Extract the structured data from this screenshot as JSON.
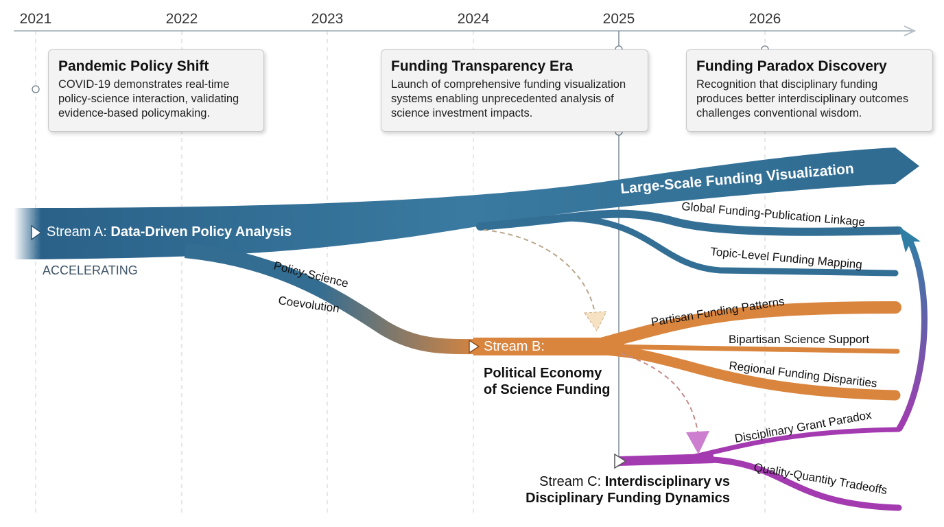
{
  "axis": {
    "years": [
      "2021",
      "2022",
      "2023",
      "2024",
      "2025",
      "2026"
    ]
  },
  "cards": [
    {
      "title": "Pandemic Policy Shift",
      "body": "COVID-19 demonstrates real-time policy-science interaction, validating evidence-based policymaking."
    },
    {
      "title": "Funding Transparency Era",
      "body": "Launch of comprehensive funding visualization systems enabling unprecedented analysis of science investment impacts."
    },
    {
      "title": "Funding Paradox Discovery",
      "body": "Recognition that disciplinary funding produces better interdisciplinary outcomes challenges conventional wisdom."
    }
  ],
  "streamA": {
    "prefix": "Stream A: ",
    "name": "Data-Driven Policy Analysis",
    "status": "ACCELERATING",
    "main_branch": "Large-Scale Funding Visualization",
    "branches": [
      "Global Funding-Publication Linkage",
      "Topic-Level Funding Mapping"
    ]
  },
  "link_ab": {
    "line1": "Policy-Science",
    "line2": "Coevolution"
  },
  "streamB": {
    "prefix": "Stream B:",
    "name_line1": "Political Economy",
    "name_line2": "of Science Funding",
    "branches": [
      "Partisan Funding Patterns",
      "Bipartisan Science Support",
      "Regional Funding Disparities"
    ]
  },
  "streamC": {
    "prefix": "Stream C: ",
    "name_line1": "Interdisciplinary vs",
    "name_line2": "Disciplinary Funding Dynamics",
    "branches": [
      "Disciplinary Grant Paradox",
      "Quality-Quantity Tradeoffs"
    ]
  },
  "colors": {
    "streamA": "#2f6a90",
    "streamB": "#d9853e",
    "streamC": "#a33ab0",
    "axis": "#8a9aa6"
  }
}
